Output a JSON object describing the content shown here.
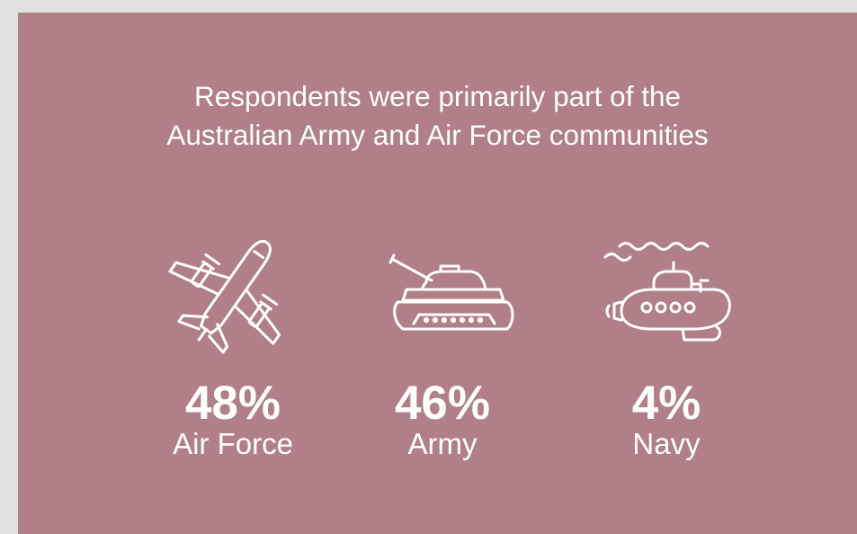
{
  "title": {
    "line1": "Respondents were primarily part of the",
    "line2": "Australian Army and Air Force communities"
  },
  "stats": [
    {
      "icon": "airplane-icon",
      "percent": "48%",
      "label": "Air Force"
    },
    {
      "icon": "tank-icon",
      "percent": "46%",
      "label": "Army"
    },
    {
      "icon": "submarine-icon",
      "percent": "4%",
      "label": "Navy"
    }
  ],
  "colors": {
    "page_background": "#e2e2e2",
    "panel_background": "#b17f88",
    "foreground": "#ffffff"
  }
}
